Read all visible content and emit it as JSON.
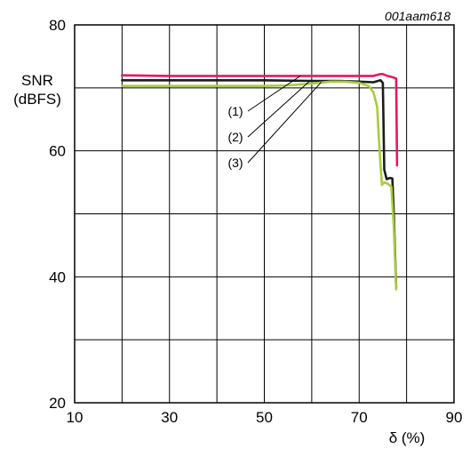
{
  "figure_id": "001aam618",
  "chart_data": {
    "type": "line",
    "ylabel_line1": "SNR",
    "ylabel_line2": "(dBFS)",
    "xlabel": "δ (%)",
    "xlim": [
      10,
      90
    ],
    "ylim": [
      20,
      80
    ],
    "xticks": [
      "10",
      "30",
      "50",
      "70",
      "90"
    ],
    "yticks": [
      "20",
      "40",
      "60",
      "80"
    ],
    "grid": true,
    "series": [
      {
        "name": "(1)",
        "color": "#e8175d",
        "x": [
          20,
          30,
          40,
          50,
          60,
          70,
          73,
          74.5,
          75,
          76,
          77,
          77.8,
          78
        ],
        "y": [
          72.0,
          71.9,
          71.9,
          71.9,
          71.9,
          71.9,
          71.9,
          72.2,
          72.2,
          71.9,
          71.7,
          71.5,
          57.7
        ]
      },
      {
        "name": "(2)",
        "color": "#1b1b1b",
        "x": [
          20,
          30,
          40,
          50,
          60,
          65,
          70,
          73,
          74.5,
          75,
          75.3,
          75.8,
          76.5,
          77,
          77.3,
          77.8
        ],
        "y": [
          71.2,
          71.2,
          71.2,
          71.2,
          71.1,
          71.1,
          71.0,
          70.9,
          71.2,
          70.8,
          57.0,
          55.5,
          55.7,
          55.6,
          50.0,
          38.3
        ]
      },
      {
        "name": "(3)",
        "color": "#a8cc3c",
        "x": [
          20,
          30,
          40,
          50,
          55,
          60,
          64,
          67,
          70,
          72,
          73,
          73.8,
          74.3,
          74.8,
          75.3,
          76,
          76.8,
          77.3,
          77.8
        ],
        "y": [
          70.3,
          70.3,
          70.3,
          70.3,
          70.4,
          70.7,
          71.0,
          71.0,
          70.8,
          70.3,
          69.3,
          67.0,
          60.0,
          54.6,
          55.0,
          54.8,
          54.3,
          48.0,
          38.0
        ]
      }
    ],
    "annotations": [
      {
        "label": "(1)",
        "x": 57.6,
        "y": 71.9
      },
      {
        "label": "(2)",
        "x": 59.6,
        "y": 71.1
      },
      {
        "label": "(3)",
        "x": 62.0,
        "y": 70.9
      }
    ]
  }
}
